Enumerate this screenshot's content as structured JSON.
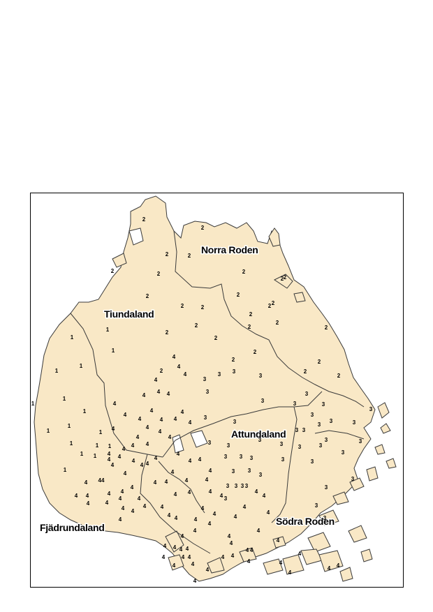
{
  "colors": {
    "land": "#f9e8c6",
    "border": "#3a3a3a",
    "water": "#ffffff",
    "frame": "#000000"
  },
  "regions": [
    {
      "id": "norra-roden",
      "label": "Norra Roden"
    },
    {
      "id": "tiundaland",
      "label": "Tiundaland"
    },
    {
      "id": "attundaland",
      "label": "Attundaland"
    },
    {
      "id": "fjadrundaland",
      "label": "Fjädrundaland"
    },
    {
      "id": "sodra-roden",
      "label": "Södra Roden"
    }
  ],
  "markers": {
    "region_1": "1",
    "region_2": "2",
    "region_3": "3",
    "region_4": "4",
    "double_4": "44"
  }
}
